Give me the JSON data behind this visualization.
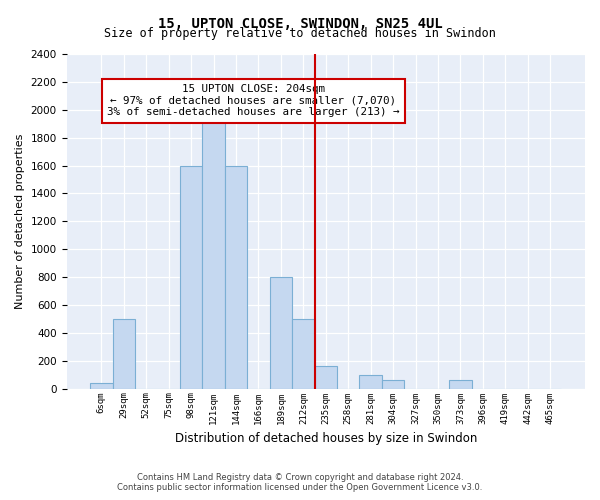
{
  "title": "15, UPTON CLOSE, SWINDON, SN25 4UL",
  "subtitle": "Size of property relative to detached houses in Swindon",
  "xlabel": "Distribution of detached houses by size in Swindon",
  "ylabel": "Number of detached properties",
  "categories": [
    "6sqm",
    "29sqm",
    "52sqm",
    "75sqm",
    "98sqm",
    "121sqm",
    "144sqm",
    "166sqm",
    "189sqm",
    "212sqm",
    "235sqm",
    "258sqm",
    "281sqm",
    "304sqm",
    "327sqm",
    "350sqm",
    "373sqm",
    "396sqm",
    "419sqm",
    "442sqm",
    "465sqm"
  ],
  "values": [
    40,
    500,
    0,
    0,
    1600,
    1950,
    1600,
    0,
    800,
    500,
    160,
    0,
    100,
    60,
    0,
    0,
    60,
    0,
    0,
    0,
    0
  ],
  "bar_color": "#c5d8f0",
  "bar_edge_color": "#7bafd4",
  "property_line_x": 9.5,
  "property_line_color": "#cc0000",
  "annotation_text": "15 UPTON CLOSE: 204sqm\n← 97% of detached houses are smaller (7,070)\n3% of semi-detached houses are larger (213) →",
  "annotation_box_color": "#cc0000",
  "ylim": [
    0,
    2400
  ],
  "yticks": [
    0,
    200,
    400,
    600,
    800,
    1000,
    1200,
    1400,
    1600,
    1800,
    2000,
    2200,
    2400
  ],
  "footer1": "Contains HM Land Registry data © Crown copyright and database right 2024.",
  "footer2": "Contains public sector information licensed under the Open Government Licence v3.0.",
  "plot_bg_color": "#e8eef8"
}
